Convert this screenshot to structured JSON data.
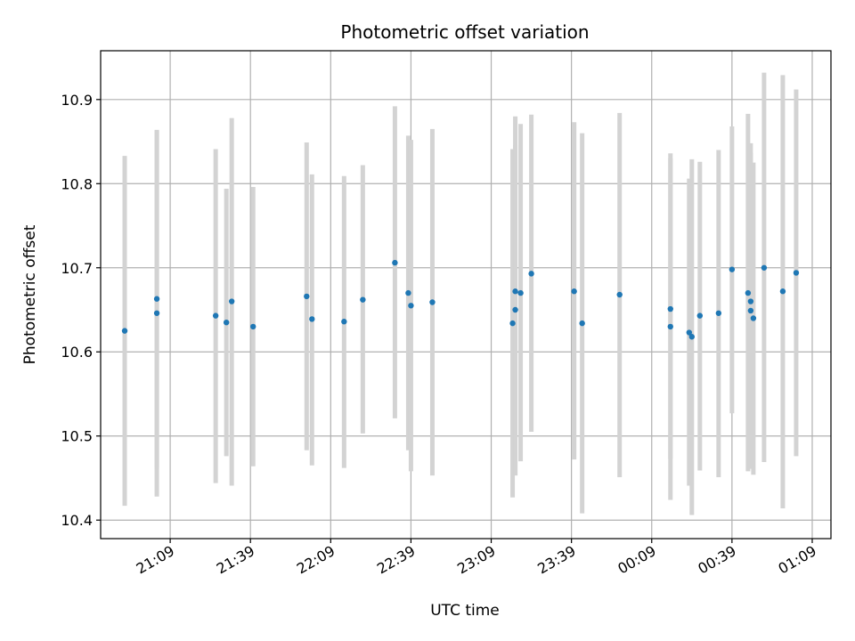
{
  "chart_data": {
    "type": "scatter",
    "title": "Photometric offset variation",
    "xlabel": "UTC time",
    "ylabel": "Photometric offset",
    "grid": true,
    "x_ticks": [
      "21:09",
      "21:39",
      "22:09",
      "22:39",
      "23:09",
      "23:39",
      "00:09",
      "00:39",
      "01:09"
    ],
    "xlim": [
      "20:43",
      "01:16"
    ],
    "y_ticks": [
      "10.4",
      "10.5",
      "10.6",
      "10.7",
      "10.8",
      "10.9"
    ],
    "ylim": [
      10.378,
      10.958
    ],
    "colors": {
      "point": "#1f77b4",
      "errorbar": "#d3d3d3",
      "grid": "#b0b0b0"
    },
    "points": [
      {
        "x": "20:52",
        "y": 10.625,
        "low": 10.417,
        "high": 10.833
      },
      {
        "x": "21:04",
        "y": 10.663,
        "low": 10.462,
        "high": 10.864
      },
      {
        "x": "21:04",
        "y": 10.646,
        "low": 10.428,
        "high": 10.863
      },
      {
        "x": "21:26",
        "y": 10.643,
        "low": 10.444,
        "high": 10.841
      },
      {
        "x": "21:30",
        "y": 10.635,
        "low": 10.476,
        "high": 10.794
      },
      {
        "x": "21:32",
        "y": 10.66,
        "low": 10.441,
        "high": 10.878
      },
      {
        "x": "21:40",
        "y": 10.63,
        "low": 10.464,
        "high": 10.796
      },
      {
        "x": "22:00",
        "y": 10.666,
        "low": 10.483,
        "high": 10.849
      },
      {
        "x": "22:02",
        "y": 10.639,
        "low": 10.465,
        "high": 10.811
      },
      {
        "x": "22:14",
        "y": 10.636,
        "low": 10.462,
        "high": 10.809
      },
      {
        "x": "22:21",
        "y": 10.662,
        "low": 10.503,
        "high": 10.822
      },
      {
        "x": "22:33",
        "y": 10.706,
        "low": 10.521,
        "high": 10.892
      },
      {
        "x": "22:38",
        "y": 10.67,
        "low": 10.483,
        "high": 10.857
      },
      {
        "x": "22:39",
        "y": 10.655,
        "low": 10.458,
        "high": 10.852
      },
      {
        "x": "22:47",
        "y": 10.659,
        "low": 10.453,
        "high": 10.865
      },
      {
        "x": "23:17",
        "y": 10.634,
        "low": 10.427,
        "high": 10.841
      },
      {
        "x": "23:18",
        "y": 10.672,
        "low": 10.453,
        "high": 10.88
      },
      {
        "x": "23:18",
        "y": 10.65,
        "low": 10.454,
        "high": 10.846
      },
      {
        "x": "23:20",
        "y": 10.67,
        "low": 10.47,
        "high": 10.871
      },
      {
        "x": "23:24",
        "y": 10.693,
        "low": 10.505,
        "high": 10.882
      },
      {
        "x": "23:40",
        "y": 10.672,
        "low": 10.472,
        "high": 10.873
      },
      {
        "x": "23:43",
        "y": 10.634,
        "low": 10.408,
        "high": 10.86
      },
      {
        "x": "23:57",
        "y": 10.668,
        "low": 10.451,
        "high": 10.884
      },
      {
        "x": "00:16",
        "y": 10.63,
        "low": 10.424,
        "high": 10.836
      },
      {
        "x": "00:16",
        "y": 10.651,
        "low": 10.473,
        "high": 10.83
      },
      {
        "x": "00:23",
        "y": 10.623,
        "low": 10.441,
        "high": 10.806
      },
      {
        "x": "00:24",
        "y": 10.618,
        "low": 10.406,
        "high": 10.829
      },
      {
        "x": "00:27",
        "y": 10.643,
        "low": 10.459,
        "high": 10.826
      },
      {
        "x": "00:34",
        "y": 10.646,
        "low": 10.451,
        "high": 10.84
      },
      {
        "x": "00:39",
        "y": 10.698,
        "low": 10.527,
        "high": 10.868
      },
      {
        "x": "00:45",
        "y": 10.67,
        "low": 10.458,
        "high": 10.883
      },
      {
        "x": "00:46",
        "y": 10.66,
        "low": 10.463,
        "high": 10.848
      },
      {
        "x": "00:46",
        "y": 10.649,
        "low": 10.461,
        "high": 10.837
      },
      {
        "x": "00:47",
        "y": 10.64,
        "low": 10.454,
        "high": 10.825
      },
      {
        "x": "00:51",
        "y": 10.7,
        "low": 10.469,
        "high": 10.932
      },
      {
        "x": "00:58",
        "y": 10.672,
        "low": 10.414,
        "high": 10.929
      },
      {
        "x": "01:03",
        "y": 10.694,
        "low": 10.476,
        "high": 10.912
      }
    ]
  }
}
